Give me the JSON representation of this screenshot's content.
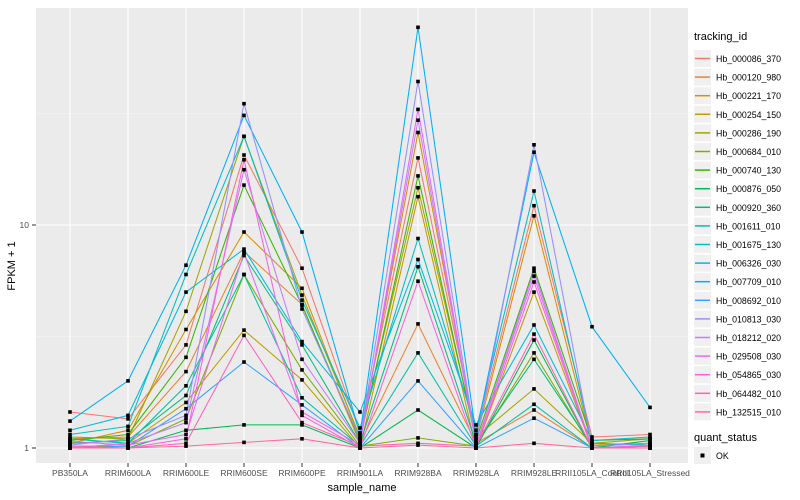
{
  "chart_data": {
    "type": "line",
    "title": "",
    "xlabel": "sample_name",
    "ylabel": "FPKM + 1",
    "y_scale": "log10",
    "ylim": [
      0.93,
      94
    ],
    "y_ticks": [
      1,
      10
    ],
    "y_tick_labels": [
      "1",
      "10"
    ],
    "y_minor_ticks": [
      3.1623,
      31.623
    ],
    "grid": true,
    "legend_position": "right",
    "legend_tracking_title": "tracking_id",
    "legend_quant_title": "quant_status",
    "quant_status_label": "OK",
    "panel_background": "#EBEBEB",
    "point_color": "#000000",
    "categories": [
      "PB350LA",
      "RRIM600LA",
      "RRIM600LE",
      "RRIM600SE",
      "RRIM600PE",
      "RRIM901LA",
      "RRIM928BA",
      "RRIM928LA",
      "RRIM928LE",
      "RRII105LA_Control",
      "RRII105LA_Stressed"
    ],
    "series": [
      {
        "name": "Hb_000086_370",
        "color": "#F8766D",
        "values": [
          1.45,
          1.35,
          2.9,
          20.6,
          6.4,
          1.17,
          20,
          1.15,
          12.2,
          1.12,
          1.15
        ]
      },
      {
        "name": "Hb_000120_980",
        "color": "#EA8331",
        "values": [
          1.1,
          1.12,
          2.2,
          7.6,
          4.4,
          1.05,
          3.6,
          1.05,
          1.48,
          1.0,
          1.02
        ]
      },
      {
        "name": "Hb_000221_170",
        "color": "#D89000",
        "values": [
          1.05,
          1.2,
          3.4,
          9.3,
          5.2,
          1.1,
          26,
          1.1,
          11,
          1.03,
          1.05
        ]
      },
      {
        "name": "Hb_000254_150",
        "color": "#C09B00",
        "values": [
          1.0,
          1.05,
          1.6,
          3.38,
          2.02,
          1.0,
          13.4,
          1.0,
          5.0,
          1.0,
          1.0
        ]
      },
      {
        "name": "Hb_000286_190",
        "color": "#A3A500",
        "values": [
          1.12,
          1.1,
          4.1,
          25,
          4.85,
          1.12,
          14.7,
          1.12,
          1.84,
          1.05,
          1.1
        ]
      },
      {
        "name": "Hb_000684_010",
        "color": "#7CAE00",
        "values": [
          1.02,
          1.02,
          1.35,
          6.0,
          2.24,
          1.02,
          1.11,
          1.02,
          2.67,
          1.0,
          1.02
        ]
      },
      {
        "name": "Hb_000740_130",
        "color": "#39B600",
        "values": [
          1.08,
          1.15,
          2.55,
          15.1,
          4.37,
          1.08,
          16.6,
          1.08,
          6.4,
          1.08,
          1.1
        ]
      },
      {
        "name": "Hb_000876_050",
        "color": "#00BB4E",
        "values": [
          1.0,
          1.0,
          1.2,
          1.27,
          1.27,
          1.0,
          1.48,
          1.0,
          3.05,
          1.0,
          1.08
        ]
      },
      {
        "name": "Hb_000920_360",
        "color": "#00BF7D",
        "values": [
          1.05,
          1.08,
          1.72,
          7.3,
          2.9,
          1.05,
          6.5,
          1.05,
          2.5,
          1.02,
          1.05
        ]
      },
      {
        "name": "Hb_001611_010",
        "color": "#00C1A3",
        "values": [
          1.1,
          1.05,
          1.9,
          6.0,
          1.68,
          1.02,
          2.67,
          1.02,
          1.57,
          1.0,
          1.0
        ]
      },
      {
        "name": "Hb_001675_130",
        "color": "#00BFC4",
        "values": [
          1.15,
          1.25,
          6.0,
          25,
          4.6,
          1.23,
          8.7,
          1.2,
          14.2,
          1.05,
          1.03
        ]
      },
      {
        "name": "Hb_006326_030",
        "color": "#00BAE0",
        "values": [
          1.2,
          1.4,
          5.0,
          7.8,
          3.0,
          1.45,
          7.0,
          1.27,
          3.56,
          1.08,
          1.12
        ]
      },
      {
        "name": "Hb_007709_010",
        "color": "#00B0F6",
        "values": [
          1.32,
          2.0,
          6.6,
          31,
          9.3,
          1.15,
          77,
          1.15,
          21.2,
          3.5,
          1.52
        ]
      },
      {
        "name": "Hb_008692_010",
        "color": "#35A2FF",
        "values": [
          1.0,
          1.02,
          1.5,
          2.43,
          1.56,
          1.0,
          2.0,
          1.0,
          1.36,
          1.0,
          1.0
        ]
      },
      {
        "name": "Hb_010813_030",
        "color": "#9590FF",
        "values": [
          1.03,
          1.1,
          1.4,
          35,
          4.2,
          1.1,
          44,
          1.05,
          22.9,
          1.02,
          1.05
        ]
      },
      {
        "name": "Hb_018212_020",
        "color": "#C77CFF",
        "values": [
          1.0,
          1.05,
          1.3,
          17.7,
          2.5,
          1.05,
          29.5,
          1.03,
          6.2,
          1.0,
          1.03
        ]
      },
      {
        "name": "Hb_029508_030",
        "color": "#E76BF3",
        "values": [
          1.07,
          1.03,
          1.15,
          7.5,
          1.45,
          1.03,
          33,
          1.03,
          5.9,
          1.0,
          1.0
        ]
      },
      {
        "name": "Hb_054865_030",
        "color": "#FA62DB",
        "values": [
          1.0,
          1.0,
          1.1,
          19.6,
          1.4,
          1.0,
          5.6,
          1.0,
          5.55,
          1.0,
          1.0
        ]
      },
      {
        "name": "Hb_064482_010",
        "color": "#FF62BC",
        "values": [
          1.02,
          1.0,
          1.05,
          3.2,
          1.3,
          1.02,
          1.05,
          1.02,
          3.24,
          1.0,
          1.02
        ]
      },
      {
        "name": "Hb_132515_010",
        "color": "#FF6A98",
        "values": [
          1.0,
          1.0,
          1.02,
          1.06,
          1.1,
          1.0,
          1.03,
          1.0,
          1.05,
          1.0,
          1.0
        ]
      }
    ]
  }
}
